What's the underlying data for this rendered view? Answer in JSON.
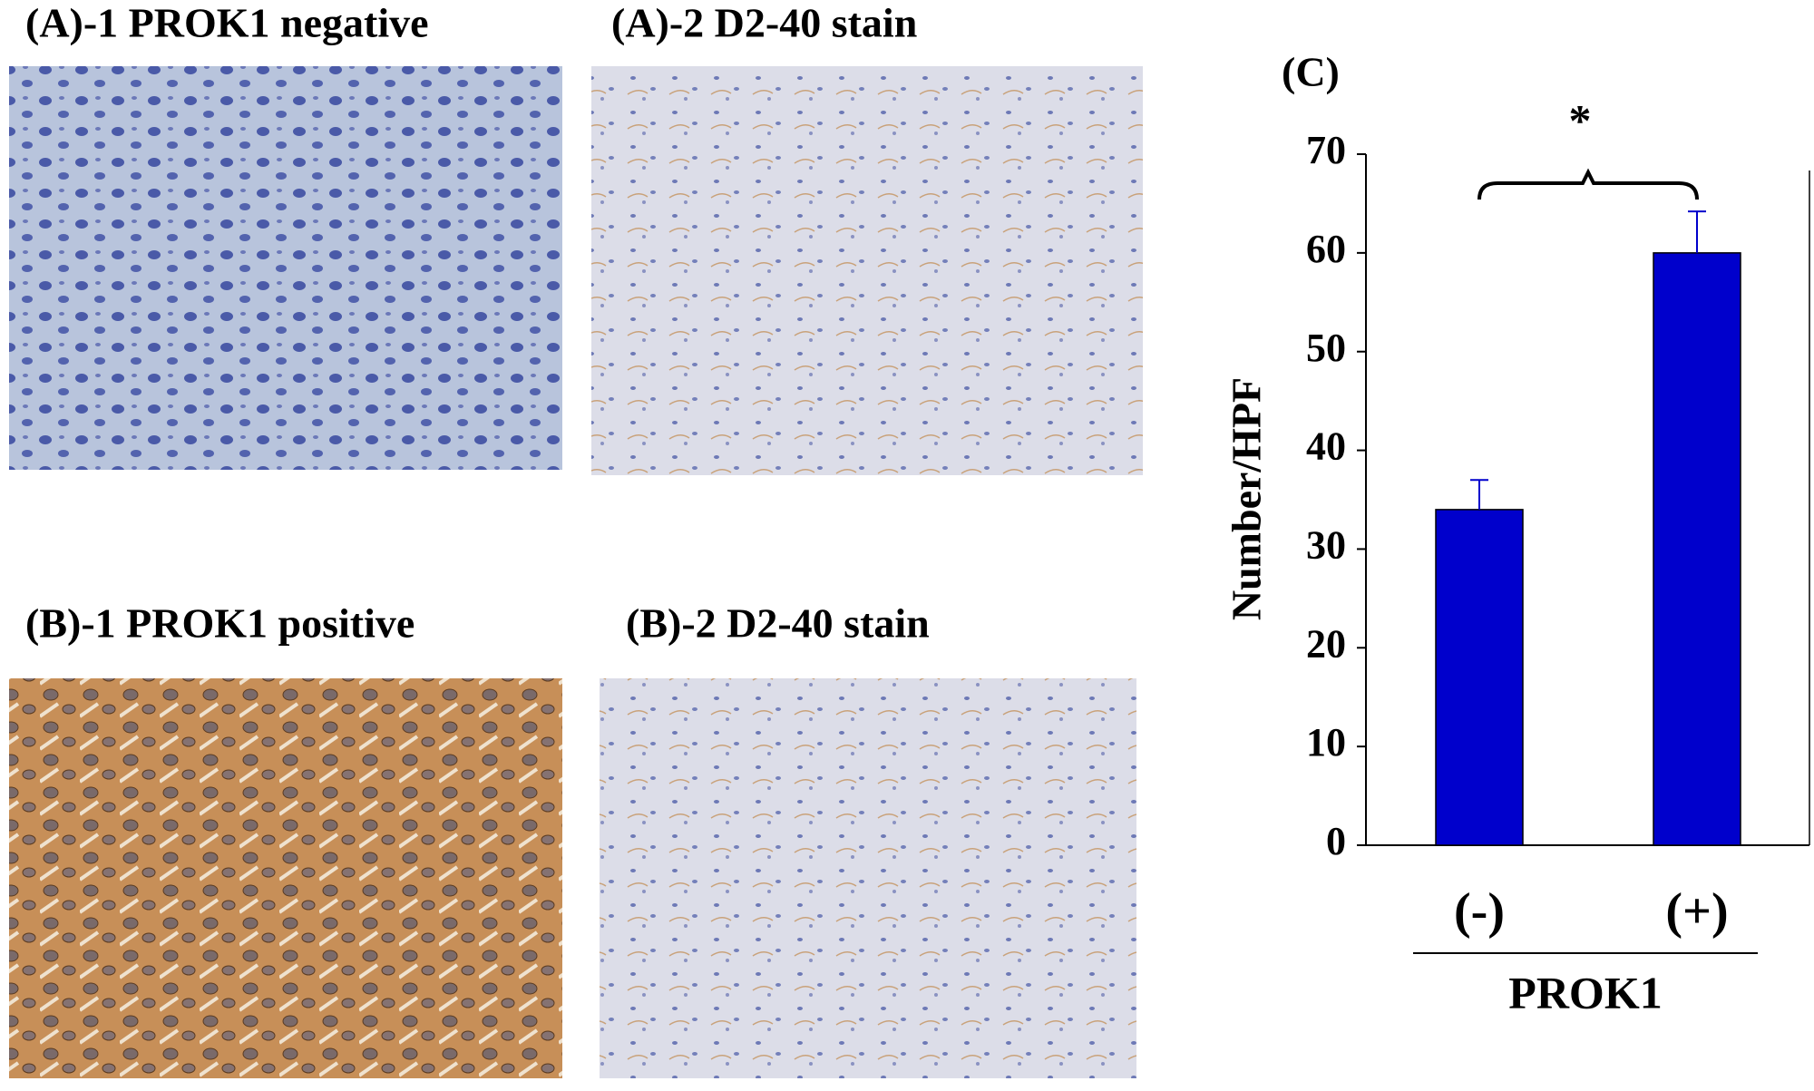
{
  "panels": [
    "(A)-1 PROK1 negative",
    "(A)-2 D2-40 stain",
    "(B)-1 PROK1 positive",
    "(B)-2 D2-40 stain"
  ],
  "chart_data": {
    "type": "bar",
    "panel_label": "(C)",
    "ylabel": "Number/HPF",
    "xlabel": "PROK1",
    "annotation": "*",
    "categories": [
      "(-)",
      "(+)"
    ],
    "values": [
      34,
      60
    ],
    "errors": [
      3,
      4.2
    ],
    "color": "#0000cc",
    "ylim": [
      0,
      70
    ],
    "yticks": [
      0,
      10,
      20,
      30,
      40,
      50,
      60,
      70
    ]
  }
}
